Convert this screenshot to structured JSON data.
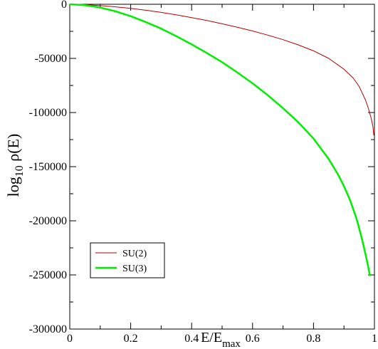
{
  "chart_data": {
    "type": "line",
    "xlabel": {
      "main": "E/E",
      "sub": "max"
    },
    "ylabel": {
      "main": "log",
      "sub": "10",
      "rest": " ρ(E)"
    },
    "xlim": [
      0,
      1
    ],
    "ylim": [
      -300000,
      0
    ],
    "x_ticks": [
      0,
      0.2,
      0.4,
      0.6,
      0.8,
      1
    ],
    "x_tick_labels": [
      "0",
      "0.2",
      "0.4",
      "0.6",
      "0.8",
      "1"
    ],
    "y_ticks": [
      0,
      -50000,
      -100000,
      -150000,
      -200000,
      -250000,
      -300000
    ],
    "y_tick_labels": [
      "0",
      "-50000",
      "-100000",
      "-150000",
      "-200000",
      "-250000",
      "-300000"
    ],
    "grid": false,
    "legend_position": "bottom-left",
    "series": [
      {
        "name": "SU(2)",
        "color": "#b30000",
        "x": [
          0,
          0.05,
          0.1,
          0.15,
          0.2,
          0.25,
          0.3,
          0.35,
          0.4,
          0.45,
          0.5,
          0.55,
          0.6,
          0.65,
          0.7,
          0.75,
          0.8,
          0.85,
          0.9,
          0.93,
          0.95,
          0.97,
          0.98,
          0.99,
          0.995,
          0.998
        ],
        "y": [
          0,
          -300,
          -1200,
          -2400,
          -3800,
          -5500,
          -7500,
          -9800,
          -12300,
          -15000,
          -18000,
          -21200,
          -24700,
          -28500,
          -32700,
          -37500,
          -43000,
          -50000,
          -60000,
          -68000,
          -76000,
          -88000,
          -96000,
          -106000,
          -113000,
          -121000
        ]
      },
      {
        "name": "SU(3)",
        "color": "#00ee00",
        "x": [
          0,
          0.05,
          0.1,
          0.15,
          0.2,
          0.25,
          0.3,
          0.35,
          0.4,
          0.45,
          0.5,
          0.55,
          0.6,
          0.65,
          0.7,
          0.75,
          0.8,
          0.85,
          0.88,
          0.9,
          0.92,
          0.94,
          0.95,
          0.96,
          0.97,
          0.98,
          0.985
        ],
        "y": [
          0,
          -800,
          -3000,
          -6500,
          -11000,
          -16500,
          -22500,
          -29500,
          -37000,
          -45000,
          -53500,
          -63000,
          -73000,
          -84000,
          -96000,
          -109000,
          -124000,
          -143000,
          -157000,
          -168000,
          -181000,
          -197000,
          -207000,
          -218000,
          -230000,
          -243000,
          -251000
        ]
      }
    ]
  }
}
